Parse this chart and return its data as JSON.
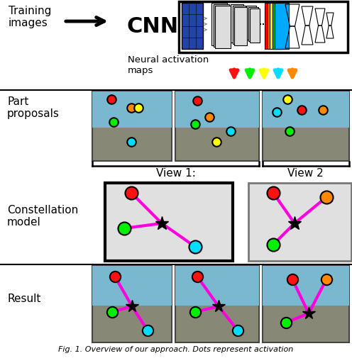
{
  "bg_color": "#ffffff",
  "magenta": "#ff00dd",
  "black": "#000000",
  "dot_colors": {
    "red": "#ff1111",
    "green": "#00ee00",
    "cyan": "#00ddff",
    "yellow": "#ffff00",
    "orange": "#ff8800"
  },
  "section_labels": {
    "training": "Training\nimages",
    "cnn": "CNN",
    "neural_maps": "Neural activation\nmaps",
    "part_proposals": "Part\nproposals",
    "view1": "View 1:",
    "view2": "View 2",
    "constellation": "Constellation\nmodel",
    "result": "Result"
  },
  "arrow_colors": [
    "#ff1111",
    "#00ee00",
    "#ffff00",
    "#00ddff",
    "#ff8800"
  ],
  "caption": "Fig. 1. Overview of our approach. Dots represent activation"
}
